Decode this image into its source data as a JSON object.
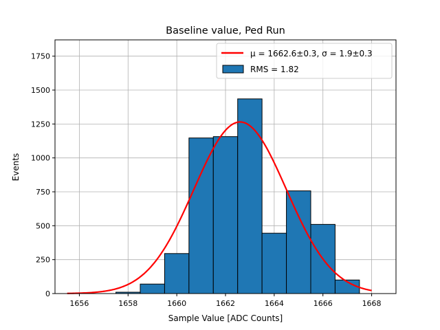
{
  "chart_data": {
    "type": "bar",
    "title": "Baseline value, Ped Run",
    "xlabel": "Sample Value [ADC Counts]",
    "ylabel": "Events",
    "xlim": [
      1655,
      1669
    ],
    "ylim": [
      0,
      1870
    ],
    "grid": true,
    "legend_position": "top-right",
    "xticks": [
      1656,
      1658,
      1660,
      1662,
      1664,
      1666,
      1668
    ],
    "yticks": [
      0,
      250,
      500,
      750,
      1000,
      1250,
      1500,
      1750
    ],
    "histogram": {
      "name": "RMS = 1.82",
      "color": "#1f77b4",
      "edgecolor": "#000000",
      "bins": [
        {
          "left": 1657.5,
          "right": 1658.5,
          "value": 10
        },
        {
          "left": 1658.5,
          "right": 1659.5,
          "value": 70
        },
        {
          "left": 1659.5,
          "right": 1660.5,
          "value": 295
        },
        {
          "left": 1660.5,
          "right": 1661.5,
          "value": 1147
        },
        {
          "left": 1661.5,
          "right": 1662.5,
          "value": 1157
        },
        {
          "left": 1662.5,
          "right": 1663.5,
          "value": 1435
        },
        {
          "left": 1663.5,
          "right": 1664.5,
          "value": 445
        },
        {
          "left": 1664.5,
          "right": 1665.5,
          "value": 757
        },
        {
          "left": 1665.5,
          "right": 1666.5,
          "value": 510
        },
        {
          "left": 1666.5,
          "right": 1667.5,
          "value": 100
        }
      ]
    },
    "fit": {
      "name": "μ = 1662.6±0.3, σ = 1.9±0.3",
      "color": "#ff0000",
      "amplitude": 1265,
      "mu": 1662.6,
      "sigma": 1.9,
      "x_range": [
        1655.5,
        1668
      ]
    },
    "legend": [
      {
        "label": "μ = 1662.6±0.3, σ = 1.9±0.3",
        "kind": "line",
        "color": "#ff0000"
      },
      {
        "label": "RMS = 1.82",
        "kind": "patch",
        "color": "#1f77b4"
      }
    ]
  }
}
